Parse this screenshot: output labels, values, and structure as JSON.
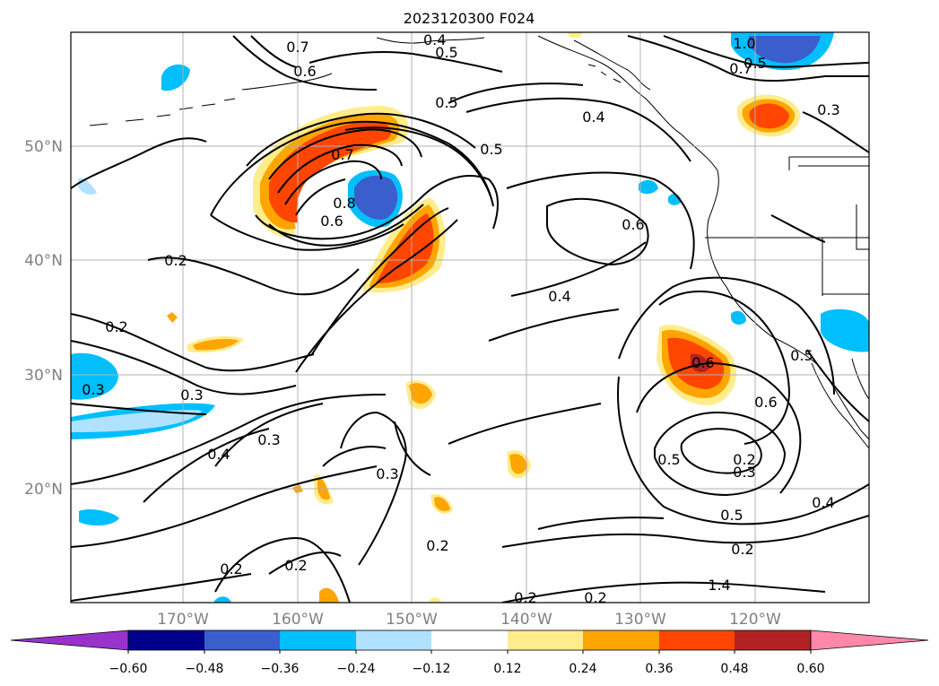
{
  "title": "2023120300 F024",
  "lat_labels": [
    "50°N",
    "40°N",
    "30°N",
    "20°N"
  ],
  "lon_labels": [
    "170°W",
    "160°W",
    "150°W",
    "140°W",
    "130°W",
    "120°W"
  ],
  "colorbar": {
    "ticks": [
      "−0.60",
      "−0.48",
      "−0.36",
      "−0.24",
      "−0.12",
      "0.12",
      "0.24",
      "0.36",
      "0.48",
      "0.60"
    ],
    "colors": [
      "#9932cc",
      "#00008b",
      "#3a5fcd",
      "#00bfff",
      "#b0e2ff",
      "#ffffff",
      "#ffec8b",
      "#ffa500",
      "#ff4500",
      "#b22222",
      "#ff88aa"
    ]
  },
  "contour_labels": [
    "0.4",
    "0.5",
    "0.7",
    "0.6",
    "0.5",
    "0.4",
    "0.5",
    "0.7",
    "0.8",
    "0.6",
    "0.6",
    "0.2",
    "0.2",
    "0.4",
    "0.3",
    "0.3",
    "0.4",
    "0.3",
    "0.3",
    "0.6",
    "0.6",
    "0.5",
    "0.5",
    "0.2",
    "0.3",
    "0.5",
    "0.4",
    "0.2",
    "0.2",
    "0.2",
    "0.2",
    "0.2",
    "0.2",
    "1.4",
    "1.0",
    "0.5",
    "0.7",
    "0.3"
  ],
  "colors": {
    "contour": "#000000",
    "grid": "#b0b0b0",
    "axis_labels": "#808080"
  }
}
